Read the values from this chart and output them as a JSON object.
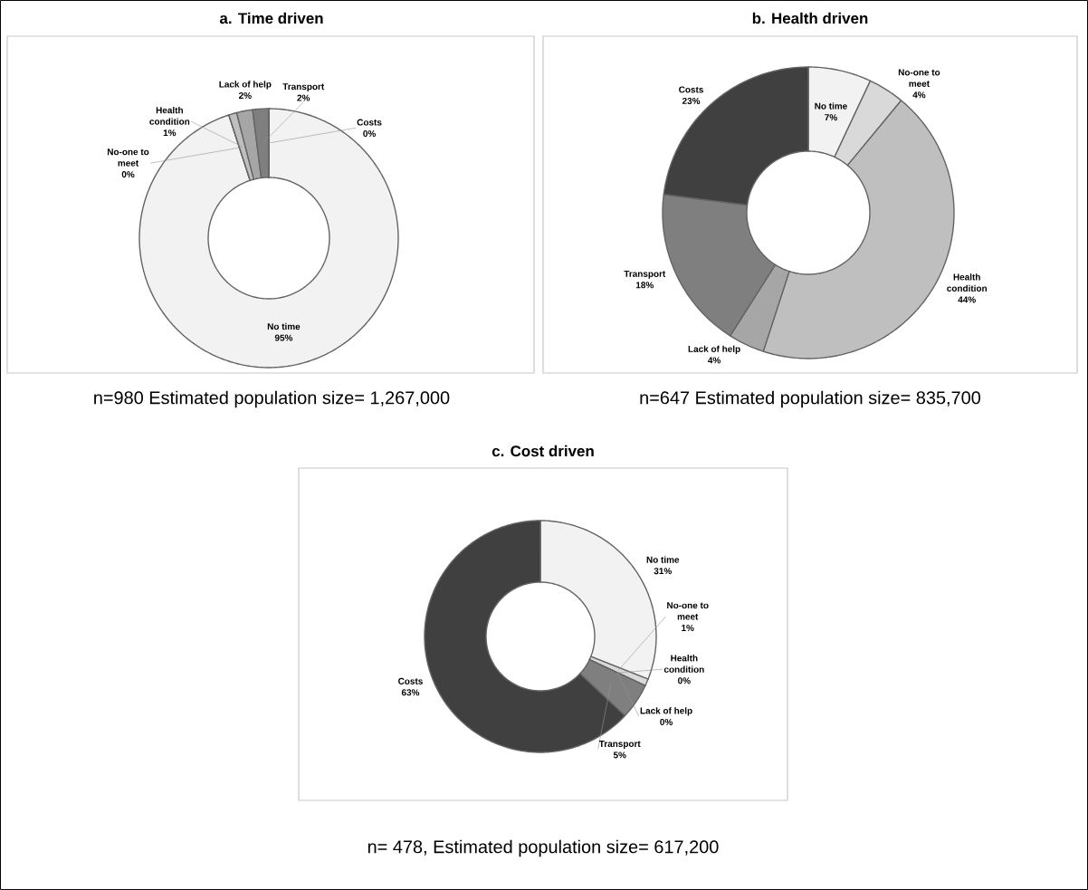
{
  "chart_data": [
    {
      "type": "donut",
      "title": "a. Time driven",
      "categories": [
        "No time",
        "No-one to meet",
        "Health condition",
        "Lack of help",
        "Transport",
        "Costs"
      ],
      "values": [
        95,
        0,
        1,
        2,
        2,
        0
      ],
      "value_labels": [
        "95%",
        "0%",
        "1%",
        "2%",
        "2%",
        "0%"
      ],
      "colors": [
        "#f2f2f2",
        "#d9d9d9",
        "#bfbfbf",
        "#a6a6a6",
        "#7f7f7f",
        "#404040"
      ],
      "annotations": [
        "n=980 Estimated population size= 1,267,000"
      ]
    },
    {
      "type": "donut",
      "title": "b. Health driven",
      "categories": [
        "No time",
        "No-one to meet",
        "Health condition",
        "Lack of help",
        "Transport",
        "Costs"
      ],
      "values": [
        7,
        4,
        44,
        4,
        18,
        23
      ],
      "value_labels": [
        "7%",
        "4%",
        "44%",
        "4%",
        "18%",
        "23%"
      ],
      "colors": [
        "#f2f2f2",
        "#d9d9d9",
        "#bfbfbf",
        "#a6a6a6",
        "#7f7f7f",
        "#404040"
      ],
      "annotations": [
        "n=647 Estimated population size= 835,700"
      ]
    },
    {
      "type": "donut",
      "title": "c. Cost driven",
      "categories": [
        "No time",
        "No-one to meet",
        "Health condition",
        "Lack of help",
        "Transport",
        "Costs"
      ],
      "values": [
        31,
        1,
        0,
        0,
        5,
        63
      ],
      "value_labels": [
        "31%",
        "1%",
        "0%",
        "0%",
        "5%",
        "63%"
      ],
      "colors": [
        "#f2f2f2",
        "#d9d9d9",
        "#bfbfbf",
        "#a6a6a6",
        "#7f7f7f",
        "#404040"
      ],
      "annotations": [
        "n= 478, Estimated population size= 617,200"
      ]
    }
  ]
}
